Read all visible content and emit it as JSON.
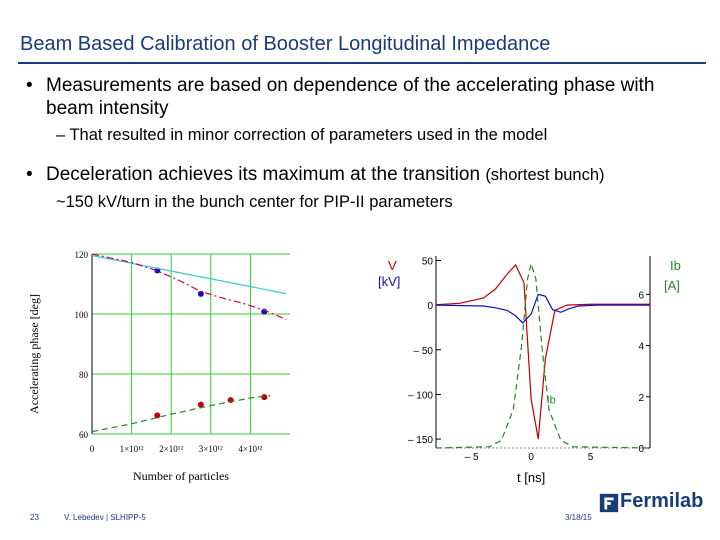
{
  "slide": {
    "title": "Beam Based Calibration of Booster Longitudinal Impedance",
    "bullet1": "Measurements are based on dependence of the accelerating phase with beam intensity",
    "sub1": "– That resulted in minor correction of parameters used in the model",
    "bullet2": "Deceleration achieves its maximum at the transition",
    "bullet2_small": "(shortest bunch)",
    "sub2": "~150 kV/turn in the bunch center for PIP-II parameters",
    "bullet_char": "•",
    "footer": {
      "page": "23",
      "author": "V. Lebedev | SLHIPP-5",
      "date": "3/18/15",
      "logo": "Fermilab"
    }
  },
  "chart_data": [
    {
      "type": "scatter",
      "xlabel": "Number of particles",
      "ylabel": "Accelerating phase [deg]",
      "xlim": [
        0,
        5000000000000.0
      ],
      "ylim": [
        60,
        120
      ],
      "xticks": [
        "0",
        "1×10¹²",
        "2×10¹²",
        "3×10¹²",
        "4×10¹²"
      ],
      "yticks": [
        "60",
        "80",
        "100",
        "120"
      ],
      "series": [
        {
          "color": "#1010c0",
          "marker": "dot",
          "x": [
            1650000000000.0,
            2750000000000.0,
            4350000000000.0
          ],
          "y": [
            114.5,
            106.7,
            100.8
          ]
        },
        {
          "color": "#c00000",
          "marker": "dot",
          "x": [
            1650000000000.0,
            2750000000000.0,
            3500000000000.0,
            4350000000000.0
          ],
          "y": [
            66.2,
            69.8,
            71.3,
            72.3
          ]
        },
        {
          "color": "#33cccc",
          "style": "solid",
          "x": [
            0,
            4900000000000.0
          ],
          "y": [
            119.5,
            106.8
          ]
        },
        {
          "color": "#cc0066",
          "style": "dash-dot",
          "x": [
            0,
            500000000000.0,
            1000000000000.0,
            1600000000000.0,
            2200000000000.0,
            2750000000000.0,
            3300000000000.0,
            3800000000000.0,
            4350000000000.0,
            4900000000000.0
          ],
          "y": [
            120,
            118.6,
            117.2,
            114.6,
            111.2,
            107.5,
            105.3,
            103.6,
            101.3,
            98.2
          ]
        },
        {
          "color": "#228822",
          "style": "dashed",
          "x": [
            0,
            1000000000000.0,
            2000000000000.0,
            3000000000000.0,
            4000000000000.0,
            4500000000000.0
          ],
          "y": [
            60.8,
            63.4,
            66.6,
            69.5,
            72,
            72.8
          ]
        }
      ]
    },
    {
      "type": "line",
      "xlabel": "t [ns]",
      "ylabel": "V [kV]",
      "y2label": "Ib [A]",
      "inline_label": "Ib",
      "xlim": [
        -8,
        10
      ],
      "ylim": [
        -160,
        55
      ],
      "y2lim": [
        0,
        7.5
      ],
      "xticks": [
        "– 5",
        "0",
        "5"
      ],
      "yticks": [
        "50",
        "0",
        "– 50",
        "– 100",
        "– 150"
      ],
      "y2ticks": [
        "6",
        "4",
        "2",
        "0"
      ],
      "series": [
        {
          "color": "#c00000",
          "axis": "left",
          "x": [
            -8,
            -6,
            -4,
            -3,
            -2,
            -1.3,
            -0.6,
            0,
            0.6,
            1.2,
            2,
            3,
            5,
            7,
            10
          ],
          "y": [
            0.5,
            2,
            8,
            18,
            35,
            45,
            25,
            -105,
            -150,
            -60,
            -6,
            0,
            1,
            1,
            1
          ]
        },
        {
          "color": "#1010c0",
          "axis": "left",
          "x": [
            -8,
            -4,
            -3,
            -2,
            -1.3,
            -0.7,
            0,
            0.6,
            1.2,
            1.8,
            2.5,
            3.2,
            4,
            5.5,
            7,
            10
          ],
          "y": [
            0,
            -1,
            -3,
            -6,
            -12,
            -20,
            -10,
            12,
            10,
            -5,
            -8,
            -4,
            -1,
            0,
            0,
            0
          ]
        },
        {
          "color": "#228822",
          "axis": "right",
          "style": "dashed",
          "x": [
            -8,
            -3.5,
            -2.5,
            -1.5,
            -0.8,
            -0.3,
            0,
            0.4,
            0.9,
            1.5,
            2.5,
            3.5,
            10
          ],
          "y": [
            0,
            0.05,
            0.3,
            1.5,
            4,
            6.6,
            7.2,
            6.6,
            4,
            1.5,
            0.3,
            0.05,
            0
          ]
        }
      ]
    }
  ]
}
